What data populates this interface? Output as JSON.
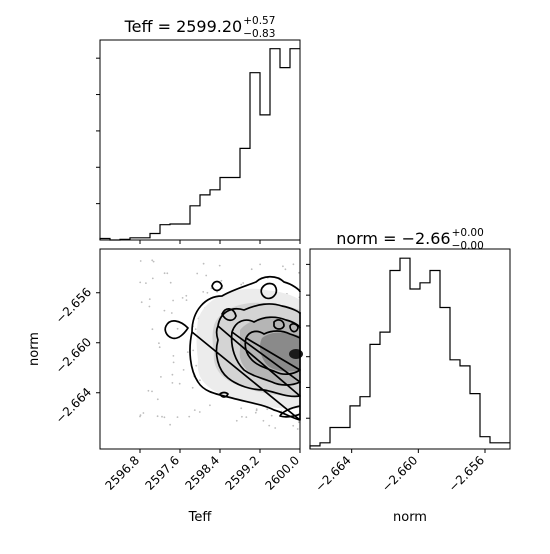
{
  "chart_data": [
    {
      "type": "histogram",
      "panel": "top-left",
      "title": {
        "main": "Teff = 2599.20",
        "sup": "+0.57",
        "sub": "−0.83"
      },
      "xlim": [
        2596.0,
        2600.0
      ],
      "bin_edges": [
        2596.0,
        2596.2,
        2596.4,
        2596.6,
        2596.8,
        2597.0,
        2597.2,
        2597.4,
        2597.6,
        2597.8,
        2598.0,
        2598.2,
        2598.4,
        2598.6,
        2598.8,
        2599.0,
        2599.2,
        2599.4,
        2599.6,
        2599.8,
        2600.0
      ],
      "counts": [
        2,
        0,
        1,
        3,
        3,
        9,
        21,
        22,
        22,
        47,
        62,
        69,
        86,
        86,
        126,
        230,
        172,
        263,
        237,
        263
      ],
      "ylim": [
        0,
        275
      ]
    },
    {
      "type": "histogram",
      "panel": "bottom-right",
      "title": {
        "main": "norm = −2.66",
        "sup": "+0.00",
        "sub": "−0.00"
      },
      "xlim": [
        -2.6665,
        -2.6545
      ],
      "bin_edges": [
        -2.6665,
        -2.6659,
        -2.6653,
        -2.6647,
        -2.6641,
        -2.6635,
        -2.6629,
        -2.6623,
        -2.6617,
        -2.6611,
        -2.6605,
        -2.6599,
        -2.6593,
        -2.6587,
        -2.6581,
        -2.6575,
        -2.6569,
        -2.6563,
        -2.6557,
        -2.6551,
        -2.6545
      ],
      "counts": [
        1,
        2,
        7,
        7,
        14,
        17,
        34,
        38,
        58,
        62,
        52,
        54,
        58,
        46,
        29,
        27,
        18,
        4,
        2,
        2
      ],
      "ylim": [
        0,
        65
      ]
    },
    {
      "type": "contour",
      "panel": "bottom-left",
      "xlabel": "Teff",
      "ylabel": "norm",
      "xlim": [
        2596.0,
        2600.0
      ],
      "ylim": [
        -2.6685,
        -2.6525
      ],
      "xticks": [
        "2596.8",
        "2597.6",
        "2598.4",
        "2599.2",
        "2600.0"
      ],
      "yticks": [
        "−2.656",
        "−2.660",
        "−2.664"
      ],
      "xtick_values": [
        2596.8,
        2597.6,
        2598.4,
        2599.2,
        2600.0
      ],
      "ytick_values": [
        -2.656,
        -2.66,
        -2.664
      ]
    }
  ],
  "hist2_xticks": [
    "−2.664",
    "−2.660",
    "−2.656"
  ],
  "hist2_xtick_values": [
    -2.664,
    -2.66,
    -2.656
  ],
  "hist2_xlabel": "norm"
}
